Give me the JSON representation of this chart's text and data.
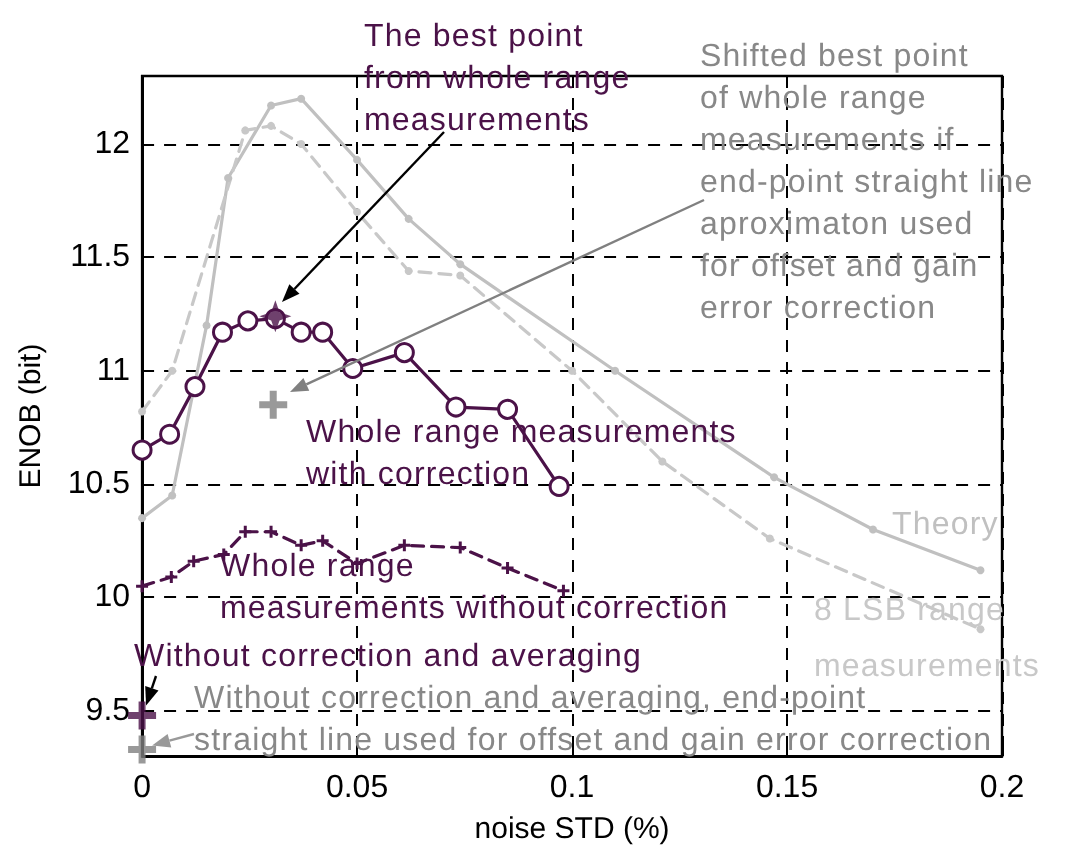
{
  "chart_data": {
    "type": "line",
    "xlabel": "noise STD (%)",
    "ylabel": "ENOB (bit)",
    "xlim": [
      0,
      0.2
    ],
    "xticks": [
      0,
      0.05,
      0.1,
      0.15,
      0.2
    ],
    "ylim": [
      9.3,
      12.3
    ],
    "yticks": [
      9.5,
      10,
      10.5,
      11,
      11.5,
      12
    ],
    "grid": true,
    "series": [
      {
        "name": "Theory",
        "color": "#c0c0c0",
        "line_style": "solid",
        "marker": "circle",
        "x": [
          0,
          0.007,
          0.015,
          0.02,
          0.03,
          0.037,
          0.05,
          0.062,
          0.074,
          0.11,
          0.147,
          0.17,
          0.195
        ],
        "values": [
          10.35,
          10.45,
          11.2,
          11.85,
          12.17,
          12.2,
          11.93,
          11.67,
          11.47,
          11.0,
          10.53,
          10.3,
          10.12
        ]
      },
      {
        "name": "8 LSB range measurements",
        "color": "#c8c8c8",
        "line_style": "dashed",
        "marker": "circle",
        "x": [
          0,
          0.007,
          0.024,
          0.03,
          0.037,
          0.05,
          0.062,
          0.074,
          0.1,
          0.121,
          0.146,
          0.195
        ],
        "values": [
          10.82,
          11.0,
          12.06,
          12.08,
          12.0,
          11.7,
          11.44,
          11.42,
          11.0,
          10.6,
          10.26,
          9.86
        ]
      },
      {
        "name": "Whole range measurements with correction",
        "color": "#4b1248",
        "line_style": "solid",
        "marker": "circle",
        "x": [
          0,
          0.0064,
          0.0123,
          0.0187,
          0.0246,
          0.031,
          0.037,
          0.042,
          0.049,
          0.061,
          0.073,
          0.085,
          0.097
        ],
        "values": [
          10.65,
          10.72,
          10.93,
          11.17,
          11.22,
          11.23,
          11.17,
          11.17,
          11.01,
          11.08,
          10.84,
          10.83,
          10.49
        ]
      },
      {
        "name": "Whole range measurements without correction",
        "color": "#4b1248",
        "line_style": "dashed",
        "marker": "cross",
        "x": [
          0,
          0.0068,
          0.012,
          0.019,
          0.024,
          0.03,
          0.037,
          0.042,
          0.05,
          0.061,
          0.074,
          0.085,
          0.098
        ],
        "values": [
          10.05,
          10.09,
          10.16,
          10.19,
          10.29,
          10.29,
          10.23,
          10.25,
          10.15,
          10.23,
          10.22,
          10.13,
          10.03
        ]
      },
      {
        "type": "scatter",
        "color": "#4b1248",
        "marker": "star",
        "x": [
          0.031
        ],
        "values": [
          11.24
        ]
      },
      {
        "type": "scatter",
        "color": "#808080",
        "marker": "cross",
        "x": [
          0.0305
        ],
        "values": [
          10.85
        ]
      },
      {
        "type": "scatter",
        "color": "#4b1248",
        "marker": "cross",
        "x": [
          0
        ],
        "values": [
          9.48
        ]
      },
      {
        "type": "scatter",
        "color": "#808080",
        "marker": "cross",
        "x": [
          0
        ],
        "values": [
          9.33
        ]
      }
    ],
    "annotations": [
      "The best point from whole range measurements",
      "Shifted best point of whole range measurements if end-point straight line aproximaton used for offset and gain error correction",
      {
        "text": "Without correction and averaging",
        "x": 0,
        "y": 9.48
      },
      {
        "text": "Without correction and averaging, end-point straight line used for offset and gain error correction",
        "x": 0,
        "y": 9.33
      }
    ]
  }
}
